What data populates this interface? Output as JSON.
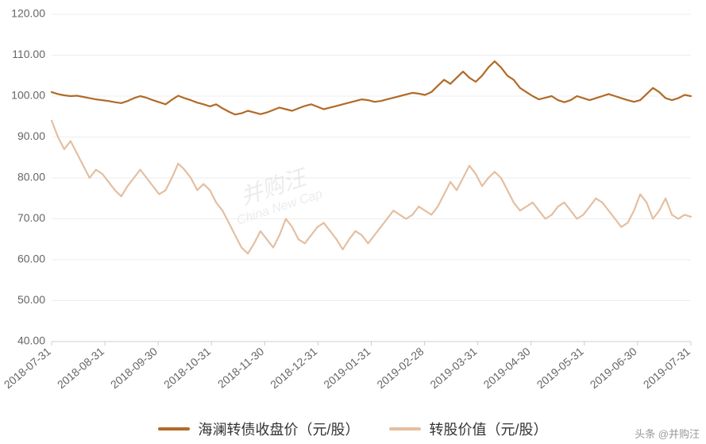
{
  "chart": {
    "type": "line",
    "background_color": "#ffffff",
    "grid_color": "#eeeeee",
    "axis_color": "#cccccc",
    "label_color": "#666666",
    "label_fontsize": 14,
    "line_width": 2.2,
    "ylim": [
      40,
      120
    ],
    "ytick_step": 10,
    "yticks": [
      "40.00",
      "50.00",
      "60.00",
      "70.00",
      "80.00",
      "90.00",
      "100.00",
      "110.00",
      "120.00"
    ],
    "xticks": [
      "2018-07-31",
      "2018-08-31",
      "2018-09-30",
      "2018-10-31",
      "2018-11-30",
      "2018-12-31",
      "2019-01-31",
      "2019-02-28",
      "2019-03-31",
      "2019-04-30",
      "2019-05-31",
      "2019-06-30",
      "2019-07-31"
    ],
    "x_label_rotation_deg": -40,
    "watermark_main": "并购汪",
    "watermark_sub": "China New Cap",
    "attribution": "头条 @并购汪",
    "series": [
      {
        "name": "海澜转债收盘价（元/股）",
        "color": "#b26a28",
        "values": [
          101,
          100.5,
          100.2,
          100,
          100.1,
          99.8,
          99.5,
          99.2,
          99,
          98.8,
          98.5,
          98.3,
          98.8,
          99.5,
          100,
          99.6,
          99,
          98.5,
          98,
          99.1,
          100.1,
          99.5,
          99,
          98.4,
          98,
          97.5,
          98,
          97,
          96.2,
          95.5,
          95.8,
          96.4,
          96,
          95.6,
          96,
          96.6,
          97.2,
          96.8,
          96.4,
          97,
          97.6,
          98,
          97.4,
          96.8,
          97.2,
          97.6,
          98,
          98.4,
          98.8,
          99.2,
          99,
          98.6,
          98.8,
          99.2,
          99.6,
          100,
          100.4,
          100.8,
          100.6,
          100.3,
          101,
          102.5,
          104,
          103,
          104.5,
          106,
          104.5,
          103.5,
          105,
          107,
          108.5,
          107,
          105,
          104,
          102,
          101,
          100,
          99.2,
          99.6,
          100,
          99,
          98.5,
          99,
          100,
          99.5,
          99,
          99.5,
          100,
          100.5,
          100,
          99.5,
          99,
          98.6,
          99,
          100.5,
          102,
          101,
          99.5,
          99,
          99.5,
          100.3,
          100
        ]
      },
      {
        "name": "转股价值（元/股）",
        "color": "#e4bfa1",
        "values": [
          94,
          90,
          87,
          89,
          86,
          83,
          80,
          82,
          81,
          79,
          77,
          75.5,
          78,
          80,
          82,
          80,
          78,
          76,
          77,
          80,
          83.5,
          82,
          80,
          77,
          78.5,
          77,
          74,
          72,
          69,
          66,
          63,
          61.5,
          64,
          67,
          65,
          63,
          66,
          70,
          68,
          65,
          64,
          66,
          68,
          69,
          67,
          65,
          62.5,
          65,
          67,
          66,
          64,
          66,
          68,
          70,
          72,
          71,
          70,
          71,
          73,
          72,
          71,
          73,
          76,
          79,
          77,
          80,
          83,
          81,
          78,
          80,
          81.5,
          80,
          77,
          74,
          72,
          73,
          74,
          72,
          70,
          71,
          73,
          74,
          72,
          70,
          71,
          73,
          75,
          74,
          72,
          70,
          68,
          69,
          72,
          76,
          74,
          70,
          72,
          75,
          71,
          70,
          71,
          70.5
        ]
      }
    ]
  }
}
